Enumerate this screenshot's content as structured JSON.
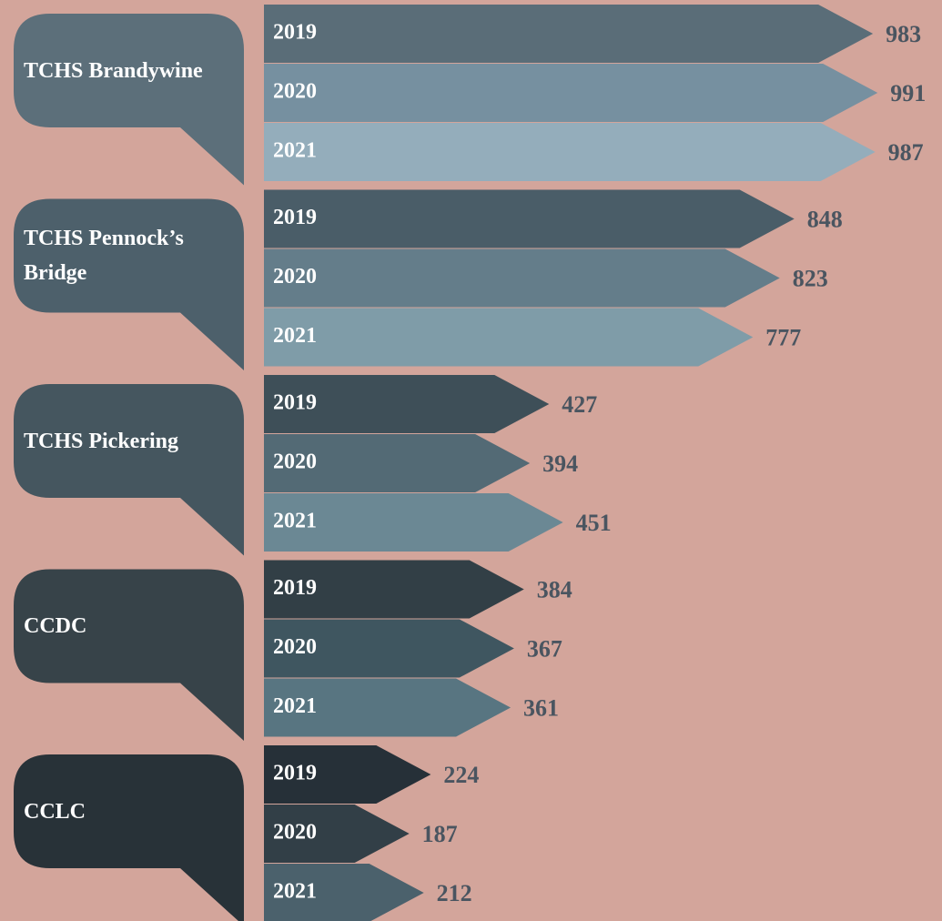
{
  "chart_data": {
    "type": "arrow-bar",
    "categories": [
      "TCHS Brandywine",
      "TCHS Pennock’s Bridge",
      "TCHS Pickering",
      "CCDC",
      "CCLC"
    ],
    "category_colors": [
      "#5c6f7a",
      "#4d606b",
      "#45565f",
      "#374349",
      "#283238"
    ],
    "series": [
      {
        "name": "2019",
        "colors": [
          "#5a6d78",
          "#4a5d68",
          "#3e4f58",
          "#323f46",
          "#263038"
        ],
        "values": [
          983,
          848,
          427,
          384,
          224
        ]
      },
      {
        "name": "2020",
        "colors": [
          "#7690a0",
          "#647d8a",
          "#536a75",
          "#3f5660",
          "#323f47"
        ],
        "values": [
          991,
          823,
          394,
          367,
          187
        ]
      },
      {
        "name": "2021",
        "colors": [
          "#94adbb",
          "#7f9ca8",
          "#6b8894",
          "#587581",
          "#4b616c"
        ],
        "values": [
          987,
          777,
          451,
          361,
          212
        ]
      }
    ]
  }
}
